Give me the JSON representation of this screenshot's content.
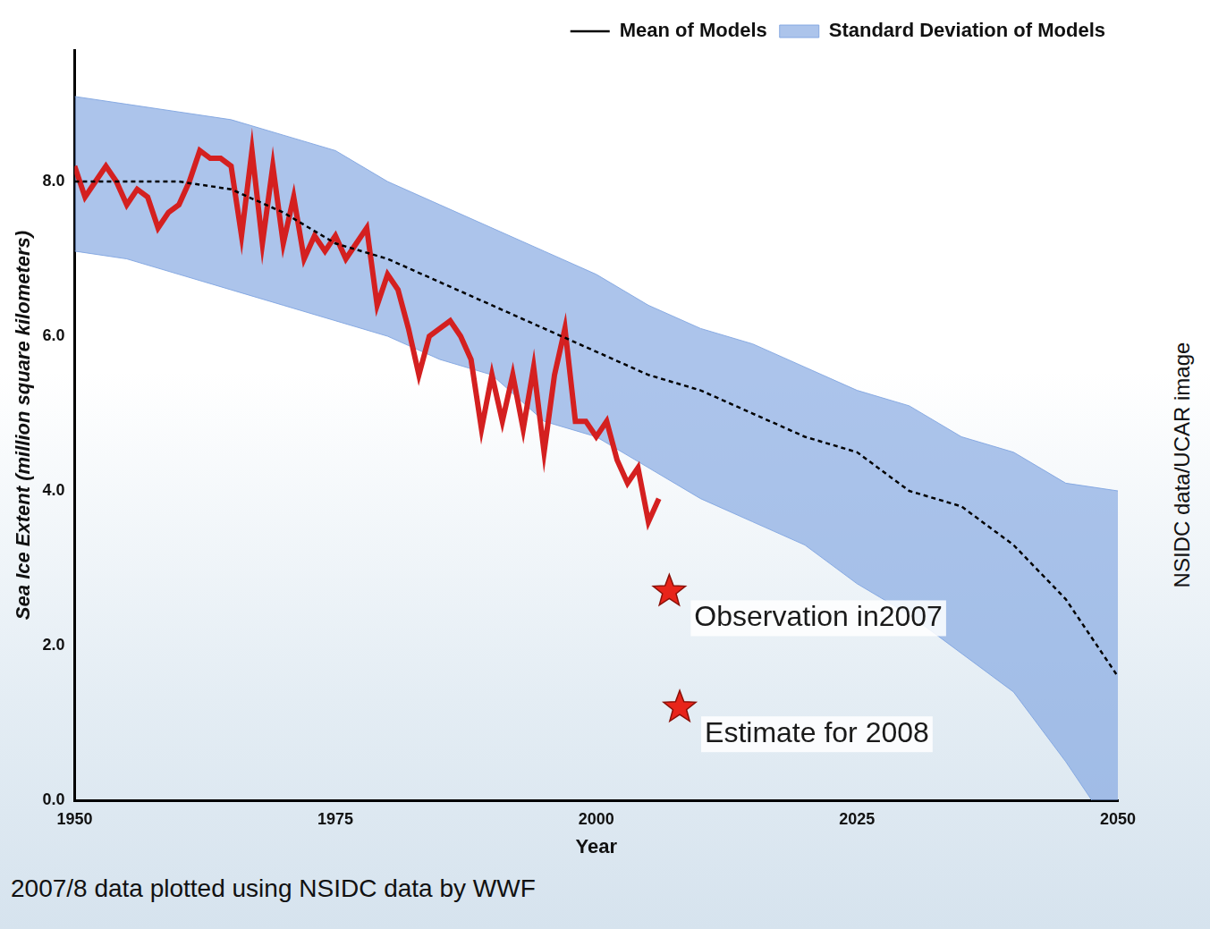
{
  "chart_data": {
    "type": "line",
    "xlabel": "Year",
    "ylabel": "Sea Ice Extent (million square kilometers)",
    "xlim": [
      1950,
      2050
    ],
    "xticks": [
      1950,
      1975,
      2000,
      2025,
      2050
    ],
    "ylim": [
      0,
      9.7
    ],
    "yticks": [
      {
        "value": 0,
        "label": "0.0"
      },
      {
        "value": 2,
        "label": "2.0"
      },
      {
        "value": 4,
        "label": "4.0"
      },
      {
        "value": 6,
        "label": "6.0"
      },
      {
        "value": 8,
        "label": "8.0"
      }
    ],
    "grid": false,
    "legend": "upper right",
    "series": [
      {
        "name": "Mean of Models",
        "type": "line",
        "color": "#000000",
        "line_style": "dashed",
        "x": [
          1950,
          1955,
          1960,
          1965,
          1970,
          1975,
          1980,
          1985,
          1990,
          1995,
          2000,
          2005,
          2010,
          2015,
          2020,
          2025,
          2030,
          2035,
          2040,
          2045,
          2050
        ],
        "values": [
          8.0,
          8.0,
          8.0,
          7.9,
          7.6,
          7.2,
          7.0,
          6.7,
          6.4,
          6.1,
          5.8,
          5.5,
          5.3,
          5.0,
          4.7,
          4.5,
          4.0,
          3.8,
          3.3,
          2.6,
          1.6
        ]
      },
      {
        "name": "Standard Deviation of Models",
        "type": "band",
        "color": "#7fa4e0",
        "x": [
          1950,
          1955,
          1960,
          1965,
          1970,
          1975,
          1980,
          1985,
          1990,
          1995,
          2000,
          2005,
          2010,
          2015,
          2020,
          2025,
          2030,
          2035,
          2040,
          2045,
          2050
        ],
        "upper": [
          9.1,
          9.0,
          8.9,
          8.8,
          8.6,
          8.4,
          8.0,
          7.7,
          7.4,
          7.1,
          6.8,
          6.4,
          6.1,
          5.9,
          5.6,
          5.3,
          5.1,
          4.7,
          4.5,
          4.1,
          4.0
        ],
        "lower": [
          7.1,
          7.0,
          6.8,
          6.6,
          6.4,
          6.2,
          6.0,
          5.7,
          5.5,
          4.9,
          4.7,
          4.3,
          3.9,
          3.6,
          3.3,
          2.8,
          2.4,
          1.9,
          1.4,
          0.5,
          -0.5
        ]
      },
      {
        "type": "line",
        "color": "#d42020",
        "line_style": "solid",
        "x": [
          1950,
          1951,
          1952,
          1953,
          1954,
          1955,
          1956,
          1957,
          1958,
          1959,
          1960,
          1961,
          1962,
          1963,
          1964,
          1965,
          1966,
          1967,
          1968,
          1969,
          1970,
          1971,
          1972,
          1973,
          1974,
          1975,
          1976,
          1977,
          1978,
          1979,
          1980,
          1981,
          1982,
          1983,
          1984,
          1985,
          1986,
          1987,
          1988,
          1989,
          1990,
          1991,
          1992,
          1993,
          1994,
          1995,
          1996,
          1997,
          1998,
          1999,
          2000,
          2001,
          2002,
          2003,
          2004,
          2005,
          2006
        ],
        "values": [
          8.2,
          7.8,
          8.0,
          8.2,
          8.0,
          7.7,
          7.9,
          7.8,
          7.4,
          7.6,
          7.7,
          8.0,
          8.4,
          8.3,
          8.3,
          8.2,
          7.3,
          8.4,
          7.2,
          8.2,
          7.2,
          7.8,
          7.0,
          7.3,
          7.1,
          7.3,
          7.0,
          7.2,
          7.4,
          6.4,
          6.8,
          6.6,
          6.1,
          5.5,
          6.0,
          6.1,
          6.2,
          6.0,
          5.7,
          4.8,
          5.5,
          4.9,
          5.5,
          4.8,
          5.6,
          4.5,
          5.5,
          6.1,
          4.9,
          4.9,
          4.7,
          4.9,
          4.4,
          4.1,
          4.3,
          3.6,
          3.9
        ]
      }
    ],
    "annotations": [
      {
        "text": "Observation in2007",
        "x": 2007,
        "y": 2.7,
        "marker": "star",
        "color": "#e8241a"
      },
      {
        "text": "Estimate for 2008",
        "x": 2008,
        "y": 1.2,
        "marker": "star",
        "color": "#e8241a"
      }
    ],
    "footnote": "2007/8 data plotted using NSIDC data by WWF",
    "credit": "NSIDC data/UCAR image"
  }
}
